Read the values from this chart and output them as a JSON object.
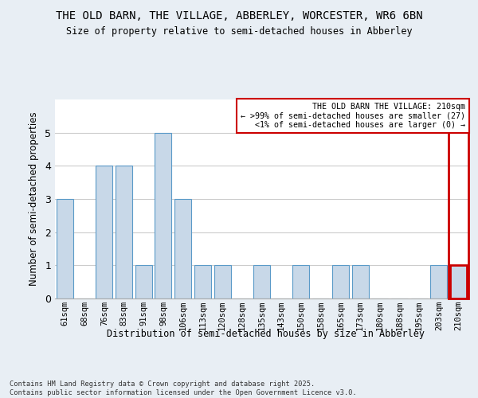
{
  "title_line1": "THE OLD BARN, THE VILLAGE, ABBERLEY, WORCESTER, WR6 6BN",
  "title_line2": "Size of property relative to semi-detached houses in Abberley",
  "xlabel": "Distribution of semi-detached houses by size in Abberley",
  "ylabel": "Number of semi-detached properties",
  "footnote": "Contains HM Land Registry data © Crown copyright and database right 2025.\nContains public sector information licensed under the Open Government Licence v3.0.",
  "categories": [
    "61sqm",
    "68sqm",
    "76sqm",
    "83sqm",
    "91sqm",
    "98sqm",
    "106sqm",
    "113sqm",
    "120sqm",
    "128sqm",
    "135sqm",
    "143sqm",
    "150sqm",
    "158sqm",
    "165sqm",
    "173sqm",
    "180sqm",
    "188sqm",
    "195sqm",
    "203sqm",
    "210sqm"
  ],
  "values": [
    3,
    0,
    4,
    4,
    1,
    5,
    3,
    1,
    1,
    0,
    1,
    0,
    1,
    0,
    1,
    1,
    0,
    0,
    0,
    1,
    1
  ],
  "bar_color_normal": "#c8d8e8",
  "bar_edge_color": "#5a9ac8",
  "highlight_index": 20,
  "highlight_box_color": "#cc0000",
  "legend_text_line1": "THE OLD BARN THE VILLAGE: 210sqm",
  "legend_text_line2": "← >99% of semi-detached houses are smaller (27)",
  "legend_text_line3": "<1% of semi-detached houses are larger (0) →",
  "ylim": [
    0,
    6
  ],
  "yticks": [
    0,
    1,
    2,
    3,
    4,
    5
  ],
  "bg_color": "#e8eef4",
  "plot_bg_color": "#ffffff",
  "grid_color": "#cccccc"
}
